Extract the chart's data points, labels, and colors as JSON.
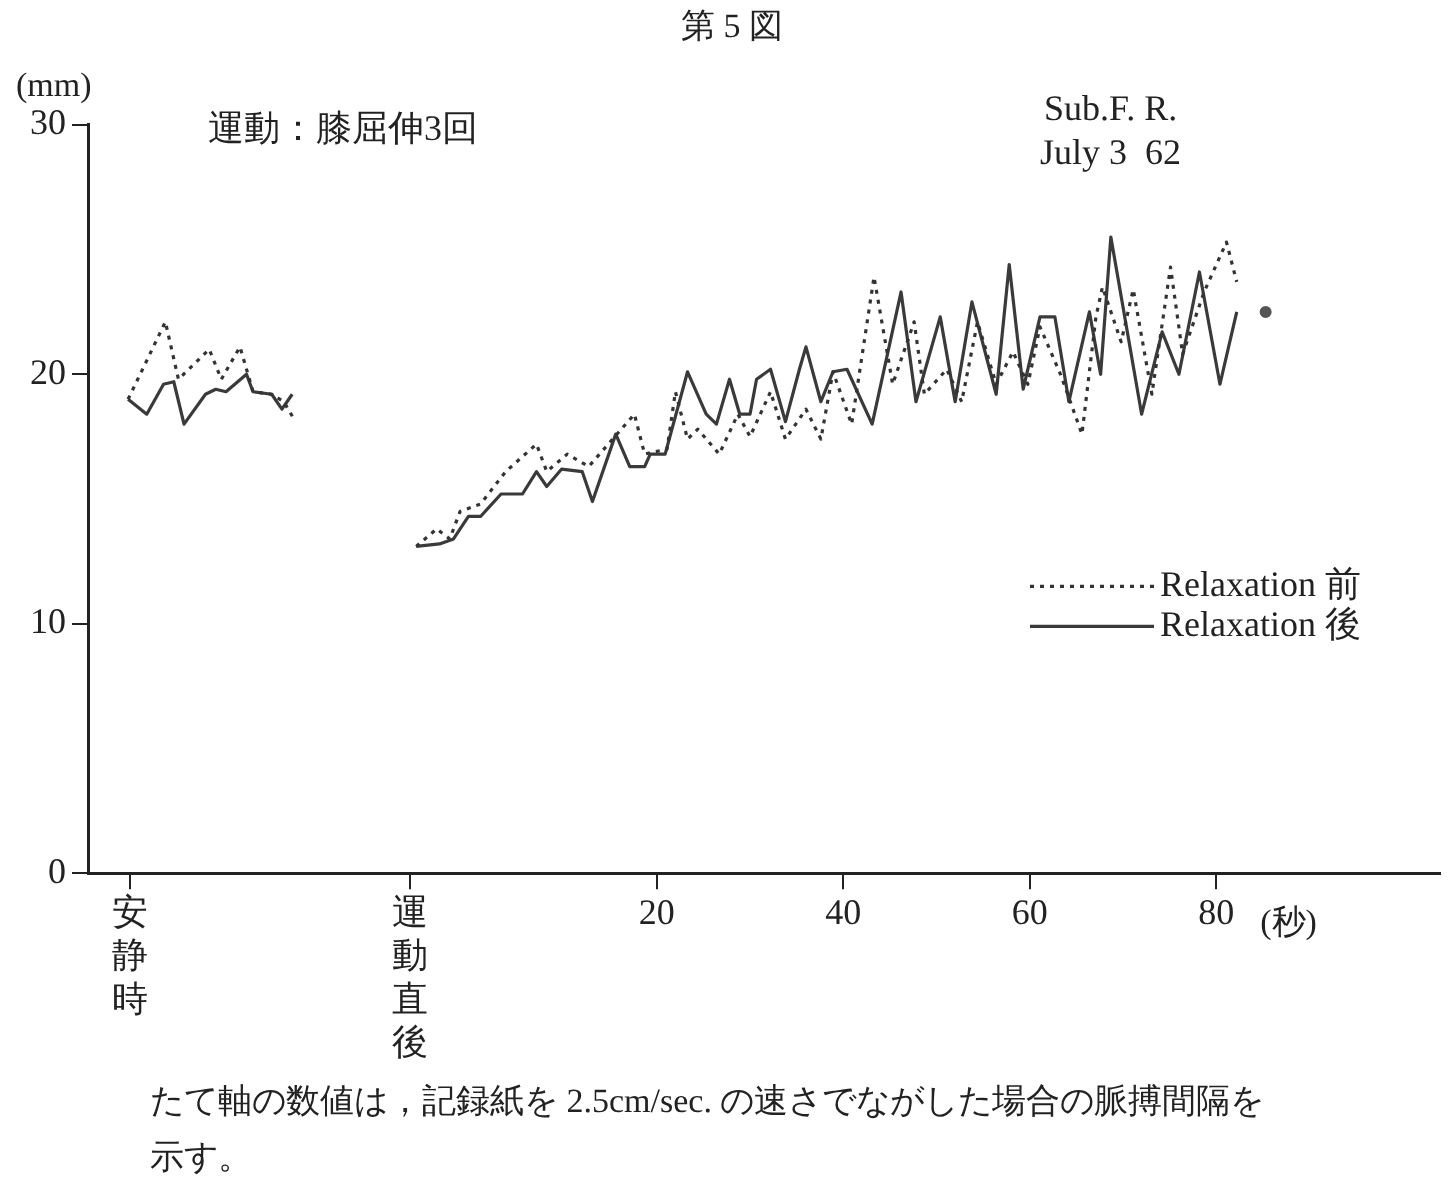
{
  "chart_data": {
    "type": "line",
    "title": "第 5 図",
    "xlabel": "(秒)",
    "ylabel": "(mm)",
    "annotations": [
      "運動：膝屈伸3回",
      "Sub.F. R.",
      "July 3  62",
      "たて軸の数値は，記録紙を 2.5cm/sec. の速さでながした場合の脈搏間隔を示す。"
    ],
    "xlim": [
      -41,
      104
    ],
    "xticks": [
      {
        "value": -36.5,
        "label": "安静時"
      },
      {
        "value": -6.5,
        "label": "運動直後"
      },
      20,
      40,
      60,
      80
    ],
    "ylim": [
      0,
      30
    ],
    "yticks": [
      0,
      10,
      20,
      30
    ],
    "grid": false,
    "legend": "right",
    "marker": "none",
    "series": [
      {
        "name": "Relaxation 前",
        "color": "#333333",
        "line_style": "dotted",
        "x": [
          -36.7,
          -32.7,
          -31.3,
          -28.0,
          -26.7,
          -24.7,
          -23.3,
          -21.3,
          -20.0,
          -18.9,
          -12,
          -5.8,
          -3.6,
          -2.2,
          -1.1,
          1.1,
          3.8,
          7.1,
          8.2,
          10.4,
          12.7,
          17.6,
          18.7,
          21.1,
          22.0,
          23.3,
          24.4,
          26.7,
          28.7,
          30.0,
          32.2,
          33.8,
          36.0,
          37.6,
          38.9,
          40.9,
          43.3,
          45.3,
          47.6,
          48.7,
          51.1,
          52.7,
          54.4,
          56.4,
          58.2,
          59.8,
          61.1,
          63.3,
          65.6,
          67.1,
          67.8,
          69.8,
          71.1,
          73.1,
          75.1,
          76.4,
          78.7,
          81.1,
          82.2
        ],
        "values": [
          19.0,
          22.1,
          19.8,
          21.0,
          19.8,
          21.1,
          19.3,
          19.2,
          18.9,
          18.2,
          null,
          13.1,
          13.8,
          13.4,
          14.5,
          14.8,
          16.1,
          17.2,
          16.1,
          16.8,
          16.3,
          18.4,
          16.8,
          17.0,
          19.3,
          17.4,
          17.8,
          16.8,
          18.4,
          17.5,
          19.3,
          17.4,
          18.6,
          17.4,
          20.1,
          18.0,
          23.9,
          19.6,
          22.1,
          19.2,
          20.2,
          18.9,
          22.1,
          19.6,
          20.9,
          19.6,
          21.9,
          20.0,
          17.6,
          22.3,
          23.5,
          21.3,
          23.4,
          19.2,
          24.3,
          20.8,
          23.3,
          25.3,
          23.7
        ]
      },
      {
        "name": "Relaxation 後",
        "color": "#3a3a3a",
        "line_style": "solid",
        "x": [
          -36.7,
          -34.7,
          -32.9,
          -31.8,
          -30.7,
          -28.4,
          -27.3,
          -26.2,
          -24.0,
          -23.3,
          -21.3,
          -20.2,
          -19.1,
          -12,
          -5.8,
          -3.3,
          -1.8,
          -0.2,
          1.1,
          3.3,
          5.6,
          7.1,
          8.2,
          9.8,
          12.0,
          13.1,
          15.6,
          17.1,
          18.7,
          19.3,
          20.9,
          23.3,
          25.3,
          26.4,
          27.8,
          28.9,
          30.0,
          30.7,
          32.2,
          33.8,
          35.3,
          36.0,
          37.6,
          38.9,
          40.4,
          43.1,
          46.2,
          47.8,
          50.4,
          52.0,
          53.8,
          56.4,
          57.8,
          59.3,
          61.1,
          62.7,
          64.2,
          66.4,
          67.6,
          68.7,
          72.0,
          74.2,
          76.0,
          78.2,
          80.4,
          82.2
        ],
        "values": [
          19.0,
          18.4,
          19.6,
          19.7,
          18.0,
          19.2,
          19.4,
          19.3,
          20.0,
          19.3,
          19.2,
          18.6,
          19.2,
          null,
          13.1,
          13.2,
          13.4,
          14.3,
          14.3,
          15.2,
          15.2,
          16.1,
          15.5,
          16.2,
          16.1,
          14.9,
          17.6,
          16.3,
          16.3,
          16.8,
          16.8,
          20.1,
          18.4,
          18.0,
          19.8,
          18.4,
          18.4,
          19.8,
          20.2,
          18.1,
          20.2,
          21.1,
          18.9,
          20.1,
          20.2,
          18.0,
          23.3,
          18.9,
          22.3,
          18.9,
          22.9,
          19.2,
          24.4,
          19.4,
          22.3,
          22.3,
          18.9,
          22.5,
          20.0,
          25.5,
          18.4,
          21.7,
          20.0,
          24.1,
          19.6,
          22.5
        ]
      },
      {
        "type": "scatter",
        "color": "#555555",
        "marker": "circle",
        "x": [
          85.3
        ],
        "values": [
          22.5
        ]
      }
    ]
  }
}
